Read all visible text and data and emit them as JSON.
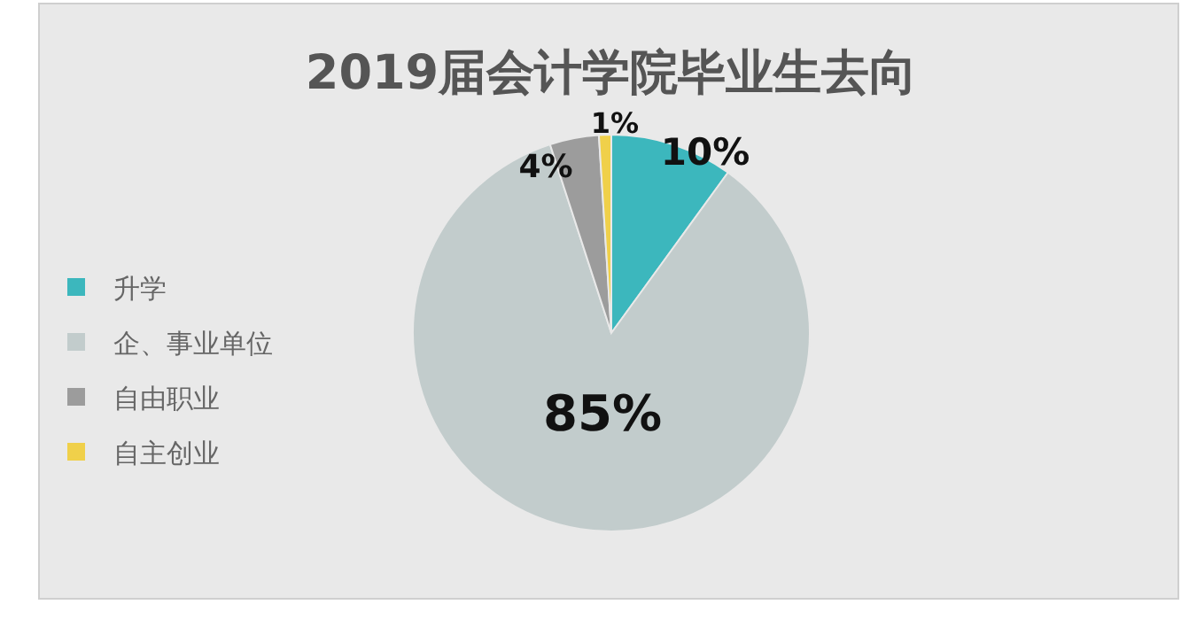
{
  "chart_data": {
    "type": "pie",
    "title": "2019届会计学院毕业生去向",
    "categories": [
      "升学",
      "企、事业单位",
      "自由职业",
      "自主创业"
    ],
    "values": [
      10,
      85,
      4,
      1
    ],
    "colors": [
      "#3cb7bd",
      "#c2cccc",
      "#9c9c9c",
      "#f0d04a"
    ],
    "value_labels": [
      "10%",
      "85%",
      "4%",
      "1%"
    ],
    "legend": "left"
  }
}
